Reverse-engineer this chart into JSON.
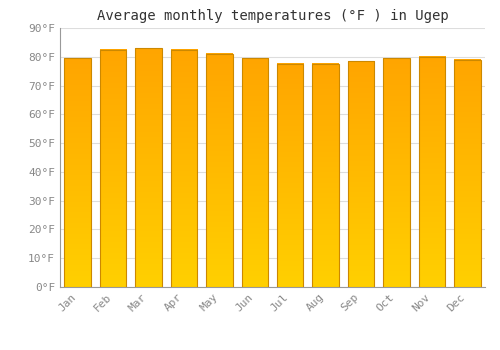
{
  "title": "Average monthly temperatures (°F ) in Ugep",
  "categories": [
    "Jan",
    "Feb",
    "Mar",
    "Apr",
    "May",
    "Jun",
    "Jul",
    "Aug",
    "Sep",
    "Oct",
    "Nov",
    "Dec"
  ],
  "values": [
    79.5,
    82.5,
    83.0,
    82.5,
    81.0,
    79.5,
    77.5,
    77.5,
    78.5,
    79.5,
    80.0,
    79.0
  ],
  "bar_color_top": "#FFA500",
  "bar_color_bottom": "#FFD000",
  "bar_edge_color": "#CC8800",
  "background_color": "#FFFFFF",
  "ylim": [
    0,
    90
  ],
  "yticks": [
    0,
    10,
    20,
    30,
    40,
    50,
    60,
    70,
    80,
    90
  ],
  "ytick_labels": [
    "0°F",
    "10°F",
    "20°F",
    "30°F",
    "40°F",
    "50°F",
    "60°F",
    "70°F",
    "80°F",
    "90°F"
  ],
  "grid_color": "#DDDDDD",
  "title_fontsize": 10,
  "tick_fontsize": 8,
  "tick_color": "#888888"
}
